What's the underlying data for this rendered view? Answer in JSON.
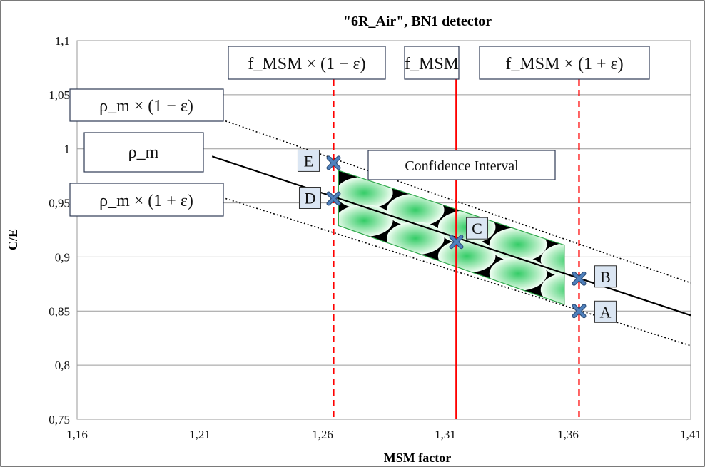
{
  "chart_data": {
    "type": "line",
    "title": "\"6R_Air\", BN1 detector",
    "xlabel": "MSM factor",
    "ylabel": "C/E",
    "xlim": [
      1.16,
      1.41
    ],
    "ylim": [
      0.75,
      1.1
    ],
    "x_ticks": [
      "1,16",
      "1,21",
      "1,26",
      "1,31",
      "1,36",
      "1,41"
    ],
    "x_tick_values": [
      1.16,
      1.21,
      1.26,
      1.31,
      1.36,
      1.41
    ],
    "y_ticks": [
      "0,75",
      "0,8",
      "0,85",
      "0,9",
      "0,95",
      "1",
      "1,05",
      "1,1"
    ],
    "y_tick_values": [
      0.75,
      0.8,
      0.85,
      0.9,
      0.95,
      1.0,
      1.05,
      1.1
    ],
    "grid": "horizontal",
    "series": [
      {
        "style": "solid-black",
        "x": [
          1.215,
          1.41
        ],
        "y": [
          0.993,
          0.846
        ]
      },
      {
        "style": "dotted-black",
        "x": [
          1.215,
          1.41
        ],
        "y": [
          1.03,
          0.876
        ]
      },
      {
        "style": "dotted-black",
        "x": [
          1.215,
          1.41
        ],
        "y": [
          0.958,
          0.818
        ]
      }
    ],
    "vertical_lines": [
      {
        "x": 1.2645,
        "style": "dashed-red"
      },
      {
        "x": 1.3145,
        "style": "solid-red"
      },
      {
        "x": 1.3645,
        "style": "dashed-red"
      }
    ],
    "confidence_interval": {
      "label": "Confidence Interval",
      "polygon": [
        [
          1.2665,
          0.98
        ],
        [
          1.3585,
          0.911
        ],
        [
          1.3585,
          0.856
        ],
        [
          1.2665,
          0.929
        ]
      ]
    },
    "points": [
      {
        "label": "A",
        "x": 1.3645,
        "y": 0.85
      },
      {
        "label": "B",
        "x": 1.3645,
        "y": 0.88
      },
      {
        "label": "C",
        "x": 1.3145,
        "y": 0.914
      },
      {
        "label": "D",
        "x": 1.2645,
        "y": 0.954
      },
      {
        "label": "E",
        "x": 1.2645,
        "y": 0.987
      }
    ],
    "annotations": {
      "f_minus": "f_MSM × (1 − ε)",
      "f_center": "f_MSM",
      "f_plus": "f_MSM × (1 + ε)",
      "rho_minus": "ρ_m × (1 − ε)",
      "rho_center": "ρ_m",
      "rho_plus": "ρ_m × (1 + ε)"
    },
    "colors": {
      "red": "#ff0000",
      "green_fill": "#33cc66",
      "marker": "#4f81bd",
      "point_box": "#dbe6f3"
    }
  }
}
